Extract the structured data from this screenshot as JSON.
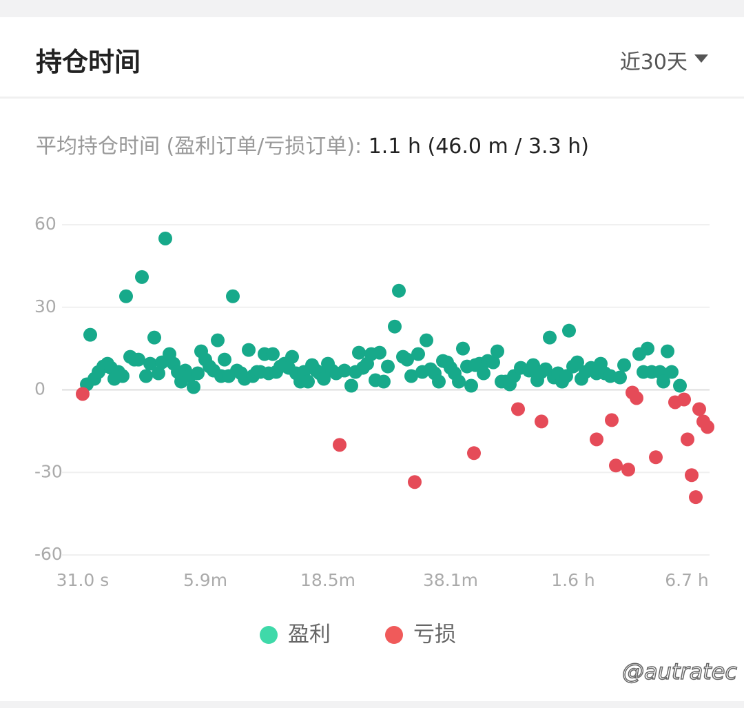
{
  "header": {
    "title": "持仓时间",
    "period": "近30天"
  },
  "summary": {
    "label": "平均持仓时间 (盈利订单/亏损订单):",
    "value": "1.1 h (46.0 m / 3.3 h)"
  },
  "chart_data": {
    "type": "scatter",
    "xlim": [
      -30,
      910
    ],
    "ylim": [
      -60,
      60
    ],
    "xticks": [
      {
        "value": 0,
        "label": "31.0 s"
      },
      {
        "value": 178,
        "label": "5.9m"
      },
      {
        "value": 356,
        "label": "18.5m"
      },
      {
        "value": 534,
        "label": "38.1m"
      },
      {
        "value": 712,
        "label": "1.6 h"
      },
      {
        "value": 877,
        "label": "6.7 h"
      }
    ],
    "yticks": [
      -60,
      -30,
      0,
      30,
      60
    ],
    "grid": true,
    "series": [
      {
        "name": "盈利",
        "color": "#17a98a",
        "legend_color": "#3fd9a9",
        "x": [
          6,
          11,
          17,
          23,
          30,
          36,
          41,
          46,
          52,
          58,
          63,
          69,
          75,
          81,
          86,
          92,
          98,
          104,
          110,
          115,
          120,
          126,
          132,
          138,
          143,
          149,
          155,
          161,
          167,
          172,
          178,
          184,
          190,
          196,
          201,
          206,
          212,
          218,
          224,
          230,
          235,
          241,
          247,
          253,
          258,
          264,
          270,
          276,
          281,
          287,
          293,
          299,
          304,
          310,
          316,
          321,
          327,
          333,
          339,
          344,
          350,
          356,
          362,
          368,
          380,
          390,
          396,
          401,
          407,
          413,
          419,
          425,
          431,
          437,
          443,
          453,
          459,
          465,
          471,
          477,
          487,
          493,
          499,
          505,
          511,
          517,
          523,
          529,
          534,
          540,
          546,
          552,
          558,
          564,
          570,
          576,
          582,
          588,
          596,
          602,
          608,
          614,
          620,
          626,
          636,
          648,
          654,
          660,
          666,
          672,
          678,
          684,
          690,
          696,
          702,
          706,
          712,
          718,
          724,
          730,
          738,
          746,
          752,
          758,
          766,
          780,
          786,
          808,
          814,
          820,
          826,
          838,
          843,
          849,
          855,
          867
        ],
        "values": [
          2,
          20,
          4,
          6.5,
          8.5,
          9.5,
          8,
          4,
          6.5,
          5,
          34,
          12,
          11,
          11,
          41,
          5,
          9.5,
          19,
          6,
          10,
          55,
          13,
          9.5,
          6.5,
          3,
          7,
          5,
          1,
          6,
          14,
          11,
          8.5,
          7,
          18,
          5,
          11,
          5,
          34,
          7,
          6,
          4,
          14.5,
          5,
          6.5,
          6.5,
          13,
          6,
          13,
          6.5,
          8.5,
          9.5,
          8,
          12,
          6,
          3,
          6.5,
          3,
          9,
          7,
          6,
          4,
          9.5,
          7,
          6,
          7,
          1.5,
          6.5,
          13.5,
          8,
          9.5,
          13,
          3.5,
          13.5,
          3,
          8.5,
          23,
          36,
          12,
          11,
          5,
          13,
          6.5,
          18,
          7.5,
          6,
          3,
          10.5,
          10,
          8,
          6,
          3,
          15,
          8.5,
          1.5,
          9,
          9.5,
          6,
          10.5,
          10,
          14,
          3,
          3,
          2,
          5,
          8,
          7,
          9,
          3.5,
          6.5,
          7.5,
          19,
          4.5,
          6,
          3,
          5,
          21.5,
          8.5,
          10,
          4,
          6.5,
          8,
          6,
          9.5,
          6,
          5,
          4.5,
          9,
          13,
          6.5,
          15,
          6.5,
          6.5,
          3,
          14,
          6.5,
          1.5
        ]
      },
      {
        "name": "亏损",
        "color": "#e54b58",
        "legend_color": "#f05a5a",
        "x": [
          0,
          373,
          482,
          568,
          632,
          666,
          746,
          768,
          774,
          792,
          798,
          804,
          832,
          860,
          873,
          878,
          884,
          890,
          895,
          901,
          907
        ],
        "values": [
          -1.5,
          -20,
          -33.5,
          -23,
          -7,
          -11.5,
          -18,
          -11,
          -27.5,
          -29,
          -1,
          -3,
          -24.5,
          -4.5,
          -3.5,
          -18,
          -31,
          -39,
          -7,
          -11.5,
          -13.5
        ]
      }
    ]
  },
  "watermark": "@autratec"
}
